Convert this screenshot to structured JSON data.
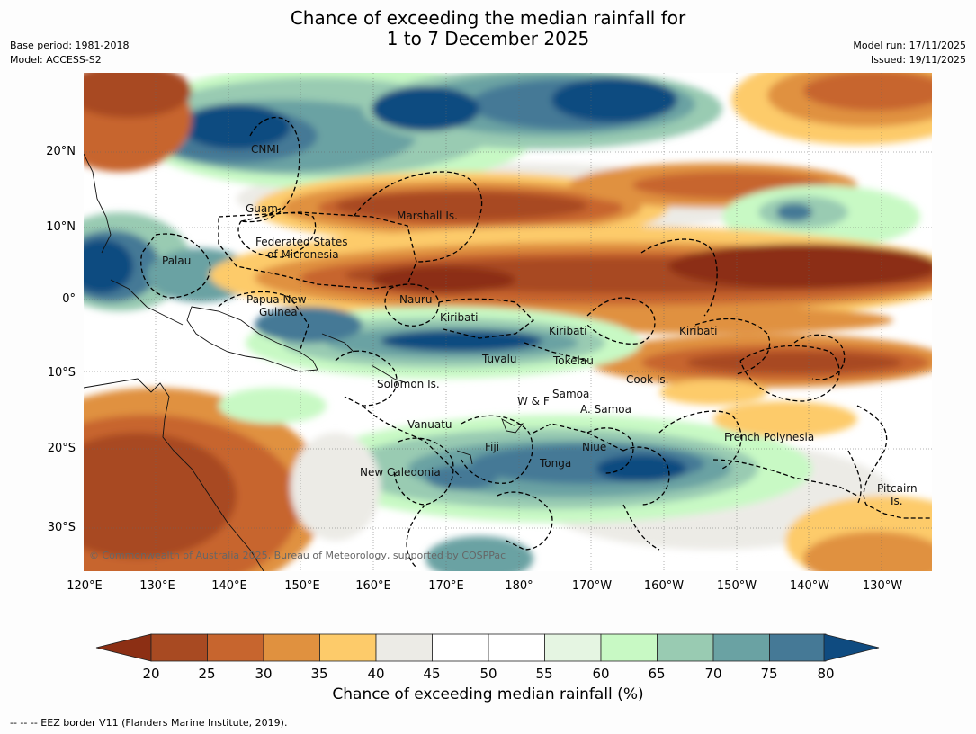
{
  "title": {
    "line1": "Chance of exceeding the median rainfall for",
    "line2": "1 to 7 December 2025"
  },
  "meta": {
    "base_period": "Base period: 1981-2018",
    "model": "Model: ACCESS-S2",
    "model_run": "Model run: 17/11/2025",
    "issued": "Issued: 19/11/2025"
  },
  "map": {
    "copyright": "© Commonwealth of Australia 2025, Bureau of Meteorology, supported by COSPPac",
    "lon_labels": [
      "120°E",
      "130°E",
      "140°E",
      "150°E",
      "160°E",
      "170°E",
      "180°",
      "170°W",
      "160°W",
      "150°W",
      "140°W",
      "130°W"
    ],
    "lat_labels": [
      "20°N",
      "10°N",
      "0°",
      "10°S",
      "20°S",
      "30°S"
    ],
    "regions": {
      "cnmi": "CNMI",
      "guam": "Guam",
      "marshall": "Marshall Is.",
      "fsm1": "Federated States",
      "fsm2": "of Micronesia",
      "palau": "Palau",
      "png1": "Papua New",
      "png2": "Guinea",
      "nauru": "Nauru",
      "kiribati1": "Kiribati",
      "kiribati2": "Kiribati",
      "kiribati3": "Kiribati",
      "tuvalu": "Tuvalu",
      "tokelau": "Tokelau",
      "solomon": "Solomon Is.",
      "cook": "Cook Is.",
      "wf": "W & F",
      "samoa": "Samoa",
      "asamoa": "A. Samoa",
      "vanuatu": "Vanuatu",
      "fiji": "Fiji",
      "niue": "Niue",
      "tonga": "Tonga",
      "french_polynesia": "French Polynesia",
      "new_caledonia": "New Caledonia",
      "pitcairn1": "Pitcairn",
      "pitcairn2": "Is."
    }
  },
  "colorbar": {
    "ticks": [
      "20",
      "25",
      "30",
      "35",
      "40",
      "45",
      "50",
      "55",
      "60",
      "65",
      "70",
      "75",
      "80"
    ],
    "low_color": "#8c2f14",
    "high_color": "#0f4b80",
    "colors": [
      "#a84a22",
      "#c7652e",
      "#e0913f",
      "#fdcb6a",
      "#ecebe6",
      "#ffffff",
      "#ffffff",
      "#e5f5e2",
      "#c8f9c4",
      "#99cbb2",
      "#6aa2a3",
      "#457996"
    ],
    "title": "Chance of exceeding median rainfall (%)"
  },
  "footer": "--  --  -- EEZ border V11 (Flanders Marine Institute, 2019)."
}
